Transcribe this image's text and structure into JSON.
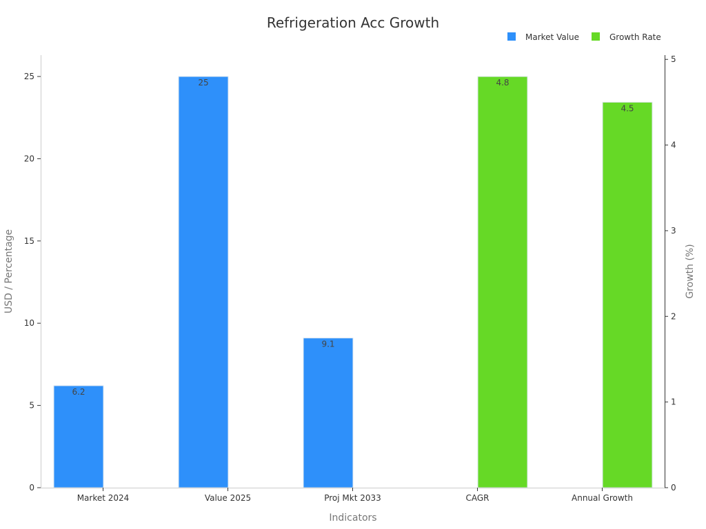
{
  "chart_data": {
    "type": "bar",
    "title": "Refrigeration Acc Growth",
    "xlabel": "Indicators",
    "ylabel": "USD / Percentage",
    "y2label": "Growth (%)",
    "categories": [
      "Market 2024",
      "Value 2025",
      "Proj Mkt 2033",
      "CAGR",
      "Annual Growth"
    ],
    "series": [
      {
        "name": "Market Value",
        "axis": "left",
        "color": "#2e90fa",
        "values": [
          6.2,
          25,
          9.1,
          null,
          null
        ]
      },
      {
        "name": "Growth Rate",
        "axis": "right",
        "color": "#66d926",
        "values": [
          null,
          null,
          null,
          4.8,
          4.5
        ]
      }
    ],
    "ylim": [
      0,
      26.3
    ],
    "y2lim": [
      0,
      5.05
    ],
    "yticks": [
      0,
      5,
      10,
      15,
      20,
      25
    ],
    "y2ticks": [
      0,
      1,
      2,
      3,
      4,
      5
    ],
    "grid": false,
    "legend_position": "top-right"
  }
}
